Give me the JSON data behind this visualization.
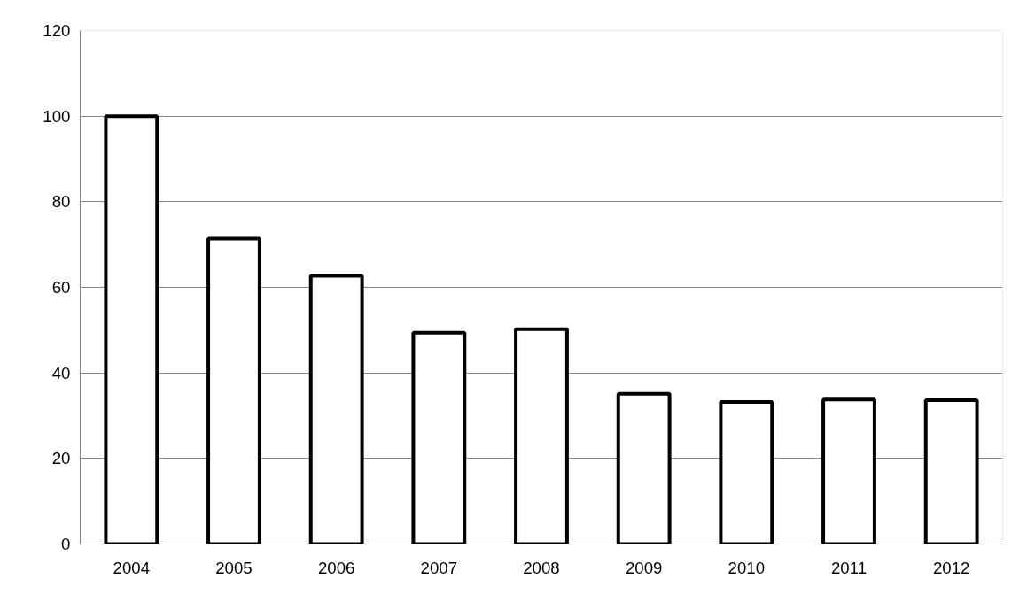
{
  "chart_data": {
    "type": "bar",
    "categories": [
      "2004",
      "2005",
      "2006",
      "2007",
      "2008",
      "2009",
      "2010",
      "2011",
      "2012"
    ],
    "values": [
      100,
      71.4,
      62.7,
      49.4,
      50.2,
      35.1,
      33.2,
      33.8,
      33.6
    ],
    "color": "#ffffff",
    "ylim": [
      0,
      120
    ],
    "yticks": [
      0,
      20,
      40,
      60,
      80,
      100,
      120
    ],
    "grid": "y"
  }
}
